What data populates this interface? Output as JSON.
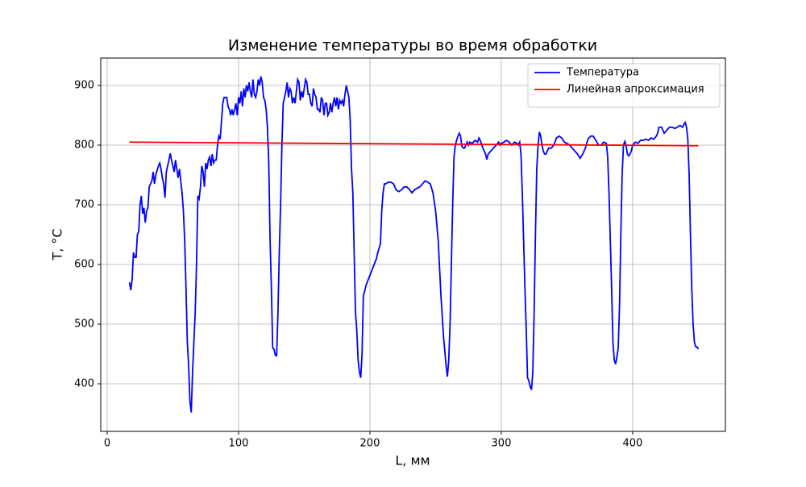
{
  "chart_data": {
    "type": "line",
    "title": "Изменение температуры во время обработки",
    "x_label": "L, мм",
    "y_label": "T, °C",
    "xlim": [
      -4.9,
      470.6
    ],
    "ylim": [
      320.3,
      945.9
    ],
    "xticks": [
      0,
      100,
      200,
      300,
      400
    ],
    "yticks": [
      400,
      500,
      600,
      700,
      800,
      900
    ],
    "grid": true,
    "legend": "upper right",
    "series": [
      {
        "name": "Температура",
        "color": "#0000ff",
        "x": [
          17,
          18,
          19,
          20,
          21,
          22,
          23,
          24,
          25,
          26,
          27,
          28,
          29,
          30,
          31,
          32,
          34,
          35,
          36,
          37,
          39,
          40,
          41,
          42,
          43,
          44,
          45,
          47,
          48,
          49,
          50,
          51,
          52,
          53,
          54,
          55,
          56,
          57,
          58,
          59,
          60,
          61,
          62,
          63,
          64,
          65,
          66,
          67,
          68,
          69,
          70,
          71,
          72,
          73,
          74,
          75,
          76,
          77,
          78,
          79,
          80,
          81,
          82,
          83,
          84,
          85,
          86,
          87,
          88,
          89,
          90,
          91,
          92,
          93,
          94,
          95,
          96,
          97,
          98,
          99,
          100,
          101,
          102,
          103,
          104,
          105,
          106,
          107,
          108,
          109,
          110,
          111,
          112,
          113,
          114,
          115,
          116,
          117,
          118,
          119,
          120,
          121,
          122,
          123,
          124,
          125,
          126,
          127,
          128,
          129,
          130,
          131,
          132,
          133,
          134,
          135,
          136,
          137,
          138,
          139,
          140,
          141,
          142,
          143,
          144,
          145,
          146,
          147,
          148,
          149,
          150,
          151,
          152,
          153,
          154,
          155,
          156,
          157,
          158,
          159,
          160,
          161,
          162,
          163,
          164,
          165,
          166,
          167,
          168,
          169,
          170,
          171,
          172,
          173,
          174,
          175,
          176,
          177,
          178,
          179,
          180,
          181,
          182,
          183,
          184,
          185,
          186,
          187,
          188,
          189,
          190,
          191,
          192,
          193,
          194,
          195,
          196,
          197,
          205,
          206,
          208,
          209,
          210,
          211,
          212,
          214,
          216,
          218,
          220,
          222,
          224,
          226,
          228,
          230,
          232,
          234,
          236,
          238,
          240,
          242,
          244,
          246,
          248,
          250,
          252,
          254,
          256,
          258,
          259,
          260,
          261,
          262,
          263,
          264,
          265,
          266,
          267,
          268,
          269,
          270,
          271,
          272,
          273,
          274,
          275,
          276,
          278,
          280,
          282,
          283,
          284,
          286,
          288,
          289,
          290,
          292,
          294,
          296,
          298,
          299,
          300,
          302,
          304,
          306,
          308,
          310,
          312,
          313,
          314,
          315,
          316,
          317,
          318,
          319,
          320,
          321,
          322,
          323,
          324,
          325,
          326,
          327,
          328,
          329,
          330,
          331,
          332,
          333,
          334,
          335,
          336,
          338,
          340,
          342,
          344,
          346,
          348,
          350,
          352,
          354,
          356,
          358,
          360,
          362,
          364,
          366,
          368,
          370,
          372,
          374,
          376,
          378,
          380,
          381,
          382,
          383,
          384,
          385,
          386,
          387,
          388,
          389,
          390,
          391,
          392,
          393,
          394,
          395,
          396,
          397,
          398,
          399,
          400,
          402,
          404,
          406,
          408,
          410,
          412,
          414,
          416,
          418,
          419,
          420,
          422,
          424,
          426,
          428,
          430,
          432,
          434,
          436,
          438,
          439,
          440,
          441,
          442,
          443,
          444,
          445,
          446,
          447,
          448,
          449,
          450
        ],
        "values": [
          570,
          557,
          575,
          620,
          612,
          612,
          650,
          655,
          700,
          715,
          685,
          695,
          670,
          690,
          695,
          730,
          740,
          755,
          735,
          750,
          765,
          770,
          760,
          745,
          735,
          712,
          755,
          775,
          786,
          775,
          765,
          755,
          775,
          760,
          745,
          760,
          740,
          720,
          690,
          640,
          560,
          470,
          430,
          370,
          352,
          420,
          470,
          520,
          600,
          715,
          710,
          730,
          765,
          755,
          730,
          770,
          760,
          775,
          780,
          765,
          785,
          770,
          775,
          775,
          800,
          815,
          810,
          840,
          870,
          880,
          880,
          880,
          865,
          860,
          850,
          860,
          850,
          860,
          870,
          850,
          880,
          870,
          890,
          865,
          895,
          880,
          900,
          890,
          905,
          890,
          880,
          910,
          885,
          880,
          890,
          910,
          900,
          915,
          905,
          880,
          875,
          860,
          830,
          770,
          640,
          560,
          460,
          458,
          448,
          447,
          520,
          620,
          700,
          800,
          870,
          880,
          890,
          905,
          880,
          895,
          890,
          870,
          880,
          870,
          890,
          910,
          905,
          875,
          890,
          880,
          895,
          910,
          905,
          885,
          885,
          870,
          865,
          895,
          885,
          880,
          860,
          860,
          855,
          880,
          875,
          850,
          870,
          870,
          850,
          855,
          870,
          855,
          870,
          880,
          865,
          880,
          860,
          875,
          870,
          875,
          865,
          885,
          900,
          890,
          880,
          840,
          760,
          720,
          620,
          520,
          490,
          440,
          420,
          410,
          450,
          548,
          555,
          565,
          610,
          620,
          635,
          690,
          720,
          735,
          735,
          738,
          738,
          735,
          725,
          722,
          725,
          730,
          730,
          726,
          720,
          725,
          728,
          730,
          735,
          740,
          738,
          735,
          720,
          690,
          640,
          550,
          480,
          430,
          412,
          440,
          500,
          600,
          700,
          780,
          800,
          808,
          815,
          820,
          815,
          798,
          795,
          795,
          800,
          805,
          800,
          805,
          803,
          808,
          805,
          812,
          808,
          795,
          785,
          776,
          785,
          790,
          795,
          800,
          805,
          800,
          803,
          805,
          808,
          805,
          800,
          805,
          803,
          800,
          805,
          785,
          720,
          640,
          560,
          490,
          410,
          405,
          395,
          390,
          420,
          520,
          650,
          760,
          800,
          822,
          815,
          800,
          790,
          785,
          785,
          790,
          795,
          795,
          800,
          812,
          815,
          812,
          805,
          803,
          800,
          795,
          790,
          785,
          778,
          785,
          795,
          810,
          815,
          815,
          808,
          800,
          800,
          805,
          803,
          780,
          720,
          640,
          560,
          470,
          440,
          433,
          445,
          460,
          530,
          650,
          750,
          800,
          806,
          800,
          785,
          782,
          785,
          790,
          800,
          805,
          803,
          808,
          808,
          810,
          808,
          812,
          810,
          815,
          820,
          830,
          830,
          820,
          825,
          830,
          830,
          828,
          830,
          833,
          830,
          835,
          838,
          830,
          810,
          750,
          650,
          560,
          500,
          470,
          462,
          462,
          458
        ]
      },
      {
        "name": "Линейная апроксимация",
        "color": "#ff0000",
        "x": [
          17,
          450
        ],
        "values": [
          805,
          799
        ]
      }
    ]
  }
}
